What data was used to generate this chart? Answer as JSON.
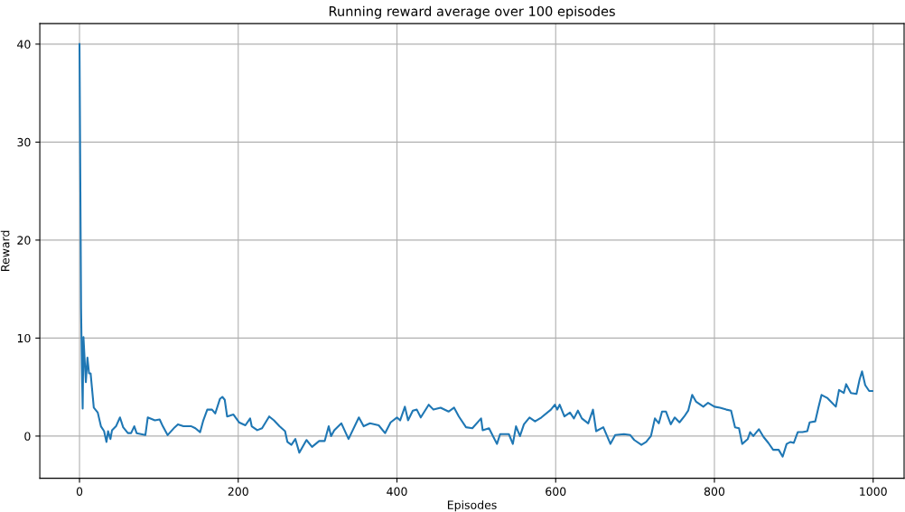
{
  "chart_data": {
    "type": "line",
    "title": "Running reward average over 100 episodes",
    "xlabel": "Episodes",
    "ylabel": "Reward",
    "xlim": [
      -50,
      1039
    ],
    "ylim": [
      -4.3,
      42.1
    ],
    "xticks": [
      0,
      200,
      400,
      600,
      800,
      1000
    ],
    "yticks": [
      0,
      10,
      20,
      30,
      40
    ],
    "grid": true,
    "series": [
      {
        "color": "#1f77b4",
        "x": [
          0,
          2,
          3,
          4,
          5,
          8,
          10,
          12,
          14,
          18,
          23,
          27,
          31,
          34,
          36,
          39,
          41,
          46,
          51,
          55,
          61,
          65,
          69,
          72,
          83,
          86,
          95,
          101,
          105,
          111,
          120,
          124,
          131,
          141,
          146,
          152,
          156,
          161,
          167,
          171,
          177,
          180,
          183,
          186,
          194,
          201,
          209,
          215,
          217,
          224,
          230,
          239,
          245,
          252,
          259,
          262,
          267,
          272,
          277,
          286,
          293,
          302,
          309,
          314,
          317,
          321,
          330,
          339,
          352,
          358,
          366,
          377,
          385,
          392,
          400,
          404,
          410,
          414,
          420,
          425,
          430,
          440,
          446,
          455,
          465,
          472,
          478,
          487,
          495,
          506,
          508,
          516,
          521,
          526,
          530,
          536,
          541,
          546,
          550,
          555,
          560,
          567,
          574,
          582,
          594,
          599,
          602,
          605,
          611,
          618,
          623,
          628,
          633,
          641,
          647,
          651,
          660,
          669,
          675,
          686,
          694,
          699,
          708,
          714,
          720,
          725,
          730,
          734,
          739,
          745,
          750,
          756,
          762,
          767,
          772,
          777,
          786,
          792,
          800,
          807,
          815,
          821,
          826,
          831,
          835,
          842,
          845,
          849,
          856,
          862,
          868,
          874,
          881,
          886,
          891,
          896,
          900,
          905,
          911,
          917,
          920,
          927,
          931,
          935,
          942,
          947,
          953,
          957,
          963,
          966,
          972,
          979,
          983,
          986,
          990,
          995,
          999
        ],
        "values": [
          40,
          13,
          7,
          2.8,
          10.1,
          5.5,
          8.0,
          6.4,
          6.4,
          2.9,
          2.4,
          1.0,
          0.5,
          -0.6,
          0.5,
          -0.3,
          0.6,
          1.0,
          1.9,
          0.9,
          0.3,
          0.3,
          1.0,
          0.3,
          0.1,
          1.9,
          1.6,
          1.7,
          1.0,
          0.1,
          0.9,
          1.2,
          1.0,
          1.0,
          0.8,
          0.4,
          1.6,
          2.7,
          2.7,
          2.3,
          3.8,
          4.0,
          3.7,
          2.0,
          2.2,
          1.4,
          1.1,
          1.8,
          1.0,
          0.6,
          0.8,
          2.0,
          1.6,
          1.0,
          0.5,
          -0.6,
          -0.9,
          -0.3,
          -1.7,
          -0.4,
          -1.1,
          -0.5,
          -0.5,
          1.0,
          0.0,
          0.6,
          1.3,
          -0.3,
          1.9,
          1.0,
          1.3,
          1.1,
          0.3,
          1.4,
          1.9,
          1.6,
          3.0,
          1.6,
          2.6,
          2.7,
          1.9,
          3.2,
          2.7,
          2.9,
          2.5,
          2.9,
          2.0,
          0.9,
          0.8,
          1.8,
          0.6,
          0.8,
          0.0,
          -0.8,
          0.2,
          0.2,
          0.2,
          -0.8,
          1.0,
          0.0,
          1.2,
          1.9,
          1.5,
          1.9,
          2.7,
          3.2,
          2.7,
          3.2,
          2.0,
          2.4,
          1.8,
          2.6,
          1.8,
          1.3,
          2.7,
          0.5,
          0.9,
          -0.8,
          0.1,
          0.2,
          0.1,
          -0.4,
          -0.9,
          -0.6,
          0.0,
          1.8,
          1.3,
          2.5,
          2.5,
          1.2,
          1.9,
          1.4,
          2.0,
          2.6,
          4.2,
          3.5,
          3.0,
          3.4,
          3.0,
          2.9,
          2.7,
          2.6,
          0.9,
          0.8,
          -0.8,
          -0.3,
          0.4,
          0.0,
          0.7,
          -0.1,
          -0.7,
          -1.4,
          -1.4,
          -2.1,
          -0.8,
          -0.6,
          -0.7,
          0.4,
          0.4,
          0.5,
          1.4,
          1.5,
          2.9,
          4.2,
          3.9,
          3.5,
          3.0,
          4.7,
          4.4,
          5.3,
          4.4,
          4.3,
          5.8,
          6.6,
          5.2,
          4.6,
          4.6
        ]
      }
    ]
  }
}
